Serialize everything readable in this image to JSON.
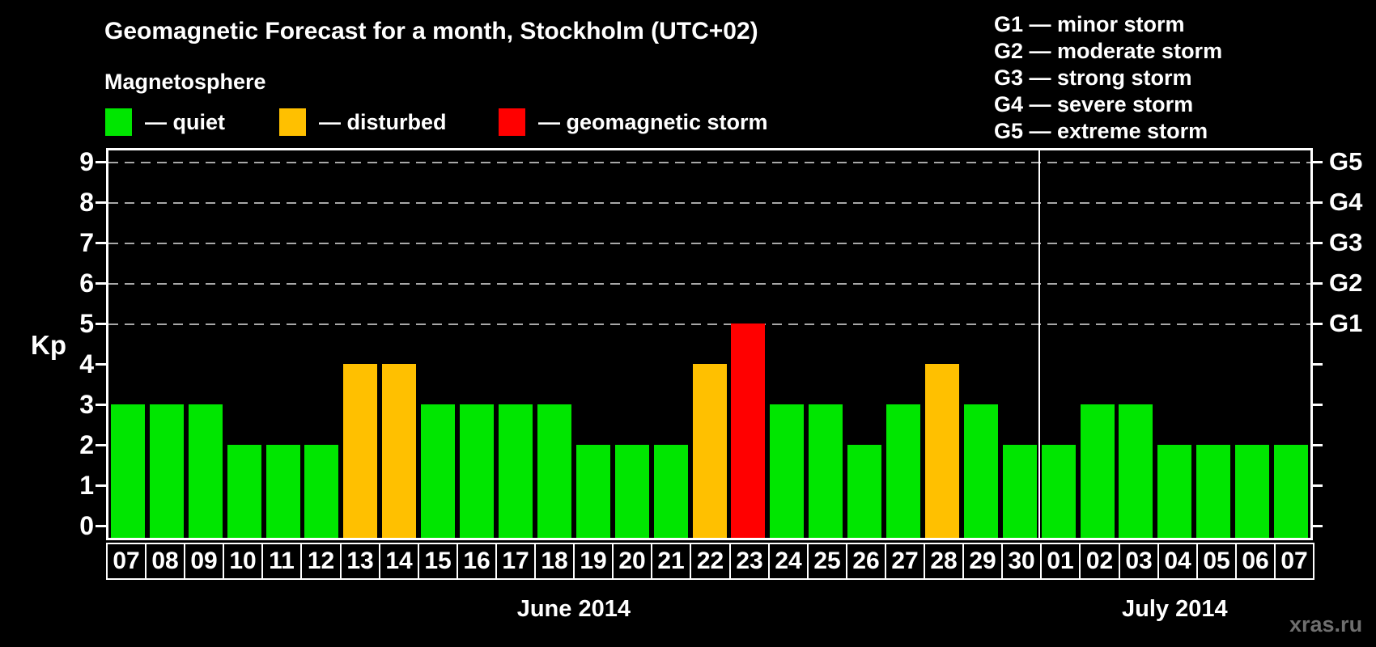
{
  "title": "Geomagnetic Forecast for a month, Stockholm (UTC+02)",
  "subtitle": "Magnetosphere",
  "kp_legend": [
    {
      "key": "quiet",
      "label": "— quiet",
      "color": "#00e600"
    },
    {
      "key": "disturbed",
      "label": "— disturbed",
      "color": "#ffc000"
    },
    {
      "key": "storm",
      "label": "— geomagnetic storm",
      "color": "#ff0000"
    }
  ],
  "g_scale_legend": [
    "G1 — minor storm",
    "G2 — moderate storm",
    "G3 — strong storm",
    "G4 — severe storm",
    "G5 — extreme storm"
  ],
  "watermark": "xras.ru",
  "chart_data": {
    "type": "bar",
    "title": "Geomagnetic Forecast for a month, Stockholm (UTC+02)",
    "ylabel": "Kp",
    "ylim": [
      0,
      9
    ],
    "yticks": [
      0,
      1,
      2,
      3,
      4,
      5,
      6,
      7,
      8,
      9
    ],
    "gridlines_at_kp": [
      5,
      6,
      7,
      8,
      9
    ],
    "grid": "dashed horizontal lines at Kp 5-9",
    "legend_position": "top-left",
    "right_axis": [
      {
        "kp": 5,
        "label": "G1"
      },
      {
        "kp": 6,
        "label": "G2"
      },
      {
        "kp": 7,
        "label": "G3"
      },
      {
        "kp": 8,
        "label": "G4"
      },
      {
        "kp": 9,
        "label": "G5"
      }
    ],
    "months": [
      {
        "label": "June 2014",
        "start_index": 0,
        "num_days": 24
      },
      {
        "label": "July 2014",
        "start_index": 24,
        "num_days": 7
      }
    ],
    "categories": [
      "07",
      "08",
      "09",
      "10",
      "11",
      "12",
      "13",
      "14",
      "15",
      "16",
      "17",
      "18",
      "19",
      "20",
      "21",
      "22",
      "23",
      "24",
      "25",
      "26",
      "27",
      "28",
      "29",
      "30",
      "01",
      "02",
      "03",
      "04",
      "05",
      "06",
      "07"
    ],
    "values": [
      3,
      3,
      3,
      2,
      2,
      2,
      4,
      4,
      3,
      3,
      3,
      3,
      2,
      2,
      2,
      4,
      5,
      3,
      3,
      2,
      3,
      4,
      3,
      2,
      2,
      3,
      3,
      2,
      2,
      2,
      2
    ],
    "statuses": [
      "quiet",
      "quiet",
      "quiet",
      "quiet",
      "quiet",
      "quiet",
      "disturbed",
      "disturbed",
      "quiet",
      "quiet",
      "quiet",
      "quiet",
      "quiet",
      "quiet",
      "quiet",
      "disturbed",
      "storm",
      "quiet",
      "quiet",
      "quiet",
      "quiet",
      "disturbed",
      "quiet",
      "quiet",
      "quiet",
      "quiet",
      "quiet",
      "quiet",
      "quiet",
      "quiet",
      "quiet"
    ],
    "status_colors": {
      "quiet": "#00e600",
      "disturbed": "#ffc000",
      "storm": "#ff0000"
    }
  }
}
